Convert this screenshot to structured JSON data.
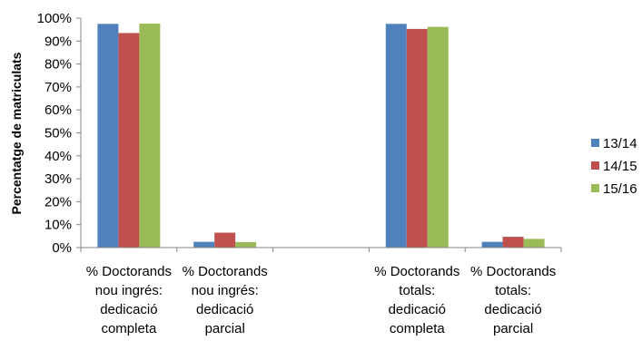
{
  "chart_data": {
    "type": "bar",
    "categories": [
      [
        "% Doctorands",
        "nou ingrés:",
        "dedicació",
        "completa"
      ],
      [
        "% Doctorands",
        "nou ingrés:",
        "dedicació",
        "parcial"
      ],
      [
        "",
        "",
        "",
        ""
      ],
      [
        "% Doctorands",
        "totals:",
        "dedicació",
        "completa"
      ],
      [
        "% Doctorands",
        "totals:",
        "dedicació",
        "parcial"
      ]
    ],
    "series": [
      {
        "name": "13/14",
        "color": "#4f81bd",
        "values": [
          97.5,
          2.5,
          null,
          97.5,
          2.5
        ]
      },
      {
        "name": "14/15",
        "color": "#c0504d",
        "values": [
          93.5,
          6.5,
          null,
          95.3,
          4.7
        ]
      },
      {
        "name": "15/16",
        "color": "#9bbb59",
        "values": [
          97.6,
          2.4,
          null,
          96.2,
          3.8
        ]
      }
    ],
    "ylabel": "Percentatge de matriculats",
    "ylim": [
      0,
      100
    ],
    "yticks": [
      "0%",
      "10%",
      "20%",
      "30%",
      "40%",
      "50%",
      "60%",
      "70%",
      "80%",
      "90%",
      "100%"
    ],
    "legend_position": "right",
    "grid": false
  }
}
